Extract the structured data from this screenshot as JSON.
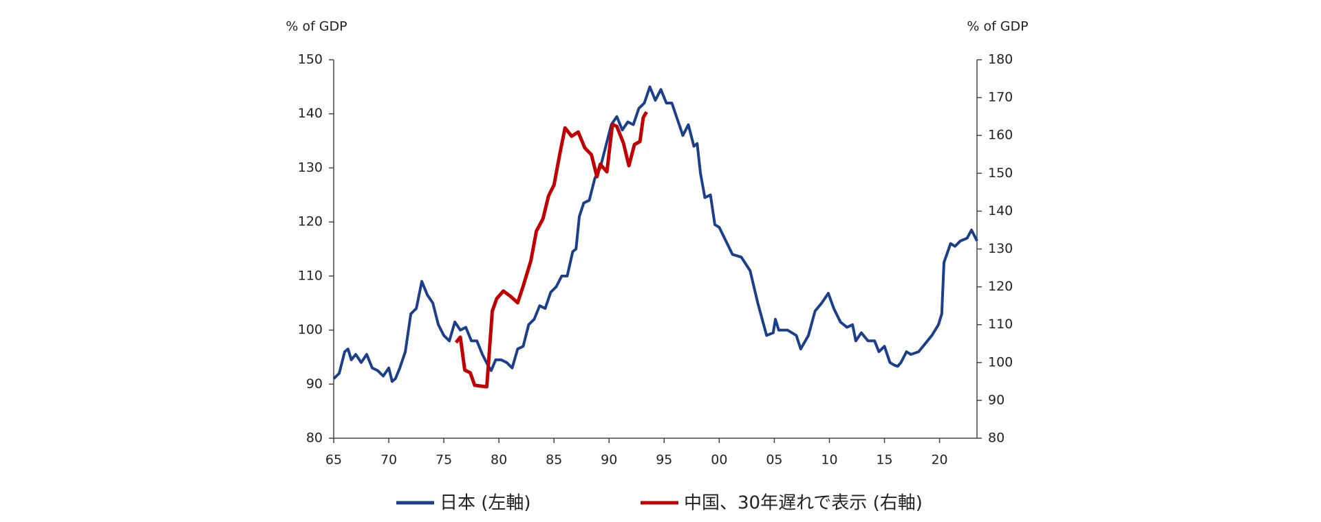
{
  "chart_data": {
    "type": "line",
    "y_label": "% of GDP",
    "y2_label": "% of GDP",
    "xlim": [
      1965,
      2023.4
    ],
    "xticks": [
      {
        "value": 1965,
        "label": "65"
      },
      {
        "value": 1970,
        "label": "70"
      },
      {
        "value": 1975,
        "label": "75"
      },
      {
        "value": 1980,
        "label": "80"
      },
      {
        "value": 1985,
        "label": "85"
      },
      {
        "value": 1990,
        "label": "90"
      },
      {
        "value": 1995,
        "label": "95"
      },
      {
        "value": 2000,
        "label": "00"
      },
      {
        "value": 2005,
        "label": "05"
      },
      {
        "value": 2010,
        "label": "10"
      },
      {
        "value": 2015,
        "label": "15"
      },
      {
        "value": 2020,
        "label": "20"
      }
    ],
    "ylim": [
      80,
      150
    ],
    "yticks": [
      80,
      90,
      100,
      110,
      120,
      130,
      140,
      150
    ],
    "y2lim": [
      80,
      180
    ],
    "y2ticks": [
      80,
      90,
      100,
      110,
      120,
      130,
      140,
      150,
      160,
      170,
      180
    ],
    "series": [
      {
        "name": "日本 (左軸)",
        "color": "#1b3f8b",
        "x": [
          1965.0,
          1965.5,
          1966.0,
          1966.3,
          1966.6,
          1967.0,
          1967.5,
          1968.0,
          1968.5,
          1969.0,
          1969.5,
          1970.0,
          1970.3,
          1970.6,
          1971.0,
          1971.5,
          1972.0,
          1972.5,
          1973.0,
          1973.5,
          1974.0,
          1974.5,
          1975.0,
          1975.5,
          1976.0,
          1976.5,
          1977.0,
          1977.5,
          1978.0,
          1978.5,
          1979.0,
          1979.3,
          1979.7,
          1980.2,
          1980.7,
          1981.2,
          1981.7,
          1982.2,
          1982.7,
          1983.2,
          1983.7,
          1984.2,
          1984.7,
          1985.2,
          1985.7,
          1986.2,
          1986.7,
          1987.0,
          1987.3,
          1987.7,
          1988.2,
          1988.7,
          1989.2,
          1989.7,
          1990.2,
          1990.7,
          1991.2,
          1991.7,
          1992.2,
          1992.7,
          1993.2,
          1993.7,
          1994.2,
          1994.7,
          1995.2,
          1995.7,
          1996.2,
          1996.7,
          1997.2,
          1997.7,
          1998.0,
          1998.3,
          1998.7,
          1999.2,
          1999.6,
          2000.0,
          2001.2,
          2002.0,
          2002.8,
          2003.5,
          2004.3,
          2004.9,
          2005.1,
          2005.4,
          2006.2,
          2007.0,
          2007.4,
          2008.1,
          2008.7,
          2009.3,
          2009.9,
          2010.4,
          2011.0,
          2011.6,
          2012.1,
          2012.4,
          2012.9,
          2013.5,
          2014.1,
          2014.5,
          2015.0,
          2015.5,
          2015.9,
          2016.2,
          2016.5,
          2017.0,
          2017.4,
          2018.1,
          2018.7,
          2019.3,
          2019.9,
          2020.2,
          2020.4,
          2021.0,
          2021.4,
          2021.9,
          2022.5,
          2022.9,
          2023.4
        ],
        "values": [
          91,
          92,
          96,
          96.5,
          94.5,
          95.5,
          94,
          95.5,
          93,
          92.5,
          91.5,
          93,
          90.5,
          91,
          93,
          96,
          103,
          104,
          109,
          106.5,
          105,
          101,
          99,
          98,
          101.5,
          100,
          100.5,
          98,
          98,
          95.5,
          93.5,
          92.5,
          94.5,
          94.5,
          94,
          93,
          96.5,
          97,
          101,
          102,
          104.5,
          104,
          107,
          108,
          110,
          110,
          114.5,
          115,
          121,
          123.5,
          124,
          128,
          130,
          134,
          138,
          139.5,
          137,
          138.5,
          138,
          141,
          142,
          145,
          142.5,
          144.5,
          142,
          142,
          139,
          136,
          138,
          134,
          134.5,
          129,
          124.5,
          125,
          119.5,
          119,
          114,
          113.5,
          111,
          105,
          99,
          99.5,
          102,
          100,
          100,
          99,
          96.5,
          99,
          103.5,
          105,
          106.8,
          104,
          101.5,
          100.5,
          101,
          98,
          99.5,
          98,
          98,
          96,
          97,
          94,
          93.5,
          93.3,
          94,
          96,
          95.5,
          96,
          97.5,
          99,
          101,
          103,
          112.5,
          116,
          115.5,
          116.5,
          117,
          118.5,
          116.5
        ]
      },
      {
        "name": "中国、30年遅れで表示 (右軸)",
        "color": "#c00000",
        "axis": "y2",
        "x": [
          1976.1,
          1976.5,
          1976.9,
          1977.4,
          1977.8,
          1978.3,
          1978.9,
          1979.4,
          1979.8,
          1980.4,
          1981.0,
          1981.7,
          1982.2,
          1982.9,
          1983.4,
          1984.0,
          1984.5,
          1985.0,
          1985.5,
          1986.0,
          1986.6,
          1987.2,
          1987.8,
          1988.4,
          1988.9,
          1989.2,
          1989.8,
          1990.3,
          1990.7,
          1991.3,
          1991.8,
          1992.3,
          1992.8,
          1993.1,
          1993.4
        ],
        "values": [
          105.3,
          106.7,
          98,
          97.3,
          94,
          93.8,
          93.6,
          113.6,
          116.9,
          118.9,
          117.6,
          115.8,
          120.2,
          126.9,
          134.7,
          138,
          144,
          146.9,
          154.7,
          162,
          159.8,
          160.9,
          156.7,
          154.9,
          149.1,
          152.4,
          150.4,
          162.9,
          162.4,
          158,
          152,
          157.6,
          158.4,
          164.7,
          166.2
        ]
      }
    ]
  }
}
